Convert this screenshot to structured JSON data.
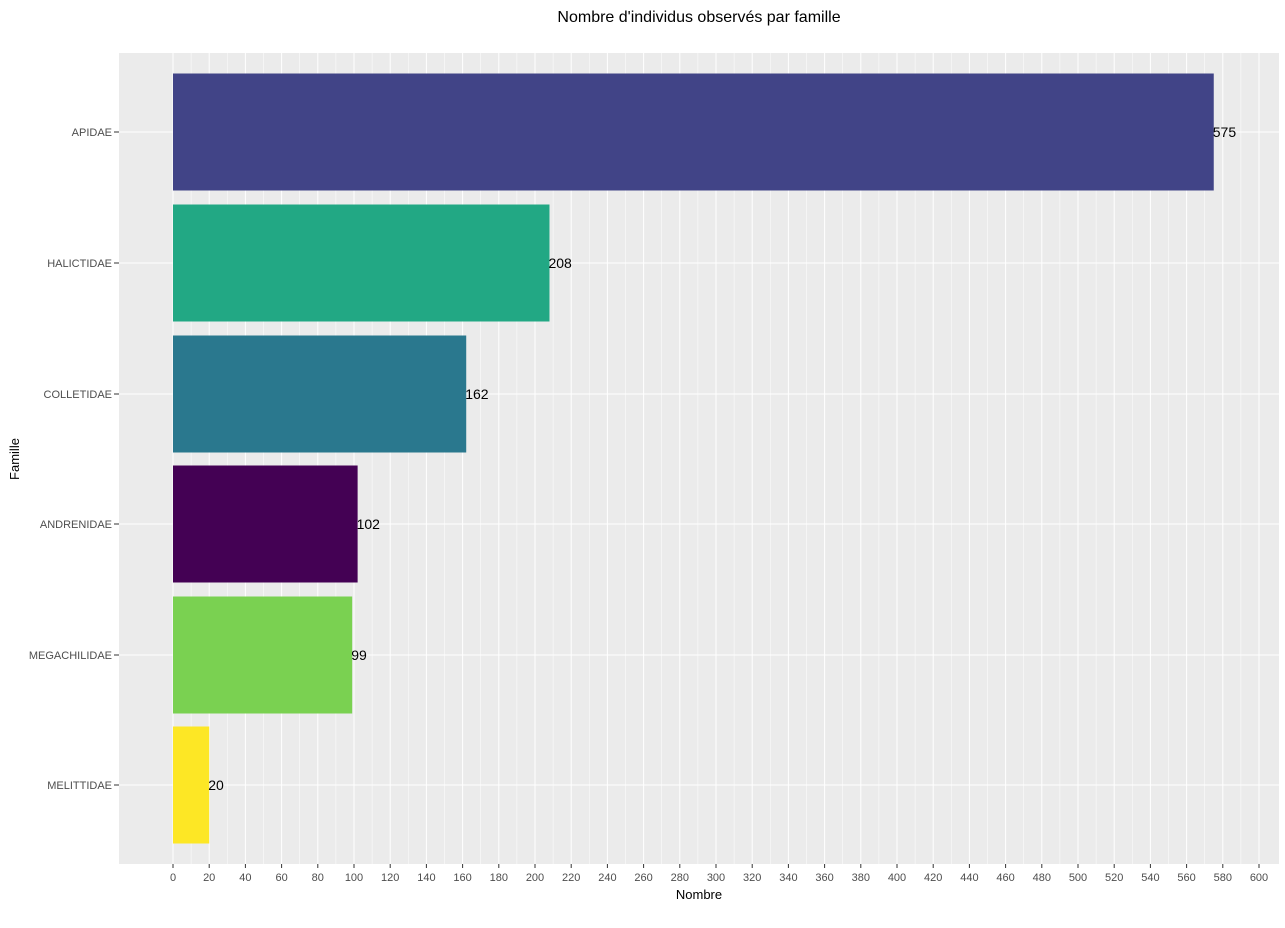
{
  "chart_data": {
    "type": "bar",
    "orientation": "horizontal",
    "title": "Nombre d'individus observés par famille",
    "xlabel": "Nombre",
    "ylabel": "Famille",
    "categories": [
      "APIDAE",
      "HALICTIDAE",
      "COLLETIDAE",
      "ANDRENIDAE",
      "MEGACHILIDAE",
      "MELITTIDAE"
    ],
    "values": [
      575,
      208,
      162,
      102,
      99,
      20
    ],
    "data_labels": [
      "575",
      "208",
      "162",
      "102",
      "99",
      "20"
    ],
    "colors": [
      "#414487",
      "#22A884",
      "#2A788E",
      "#440154",
      "#7AD151",
      "#FDE725"
    ],
    "xlim": [
      0,
      600
    ],
    "xticks": [
      0,
      20,
      40,
      60,
      80,
      100,
      120,
      140,
      160,
      180,
      200,
      220,
      240,
      260,
      280,
      300,
      320,
      340,
      360,
      380,
      400,
      420,
      440,
      460,
      480,
      500,
      520,
      540,
      560,
      580,
      600
    ],
    "grid": true,
    "legend": "none",
    "panel_background": "#EBEBEB",
    "grid_color": "#FFFFFF"
  }
}
